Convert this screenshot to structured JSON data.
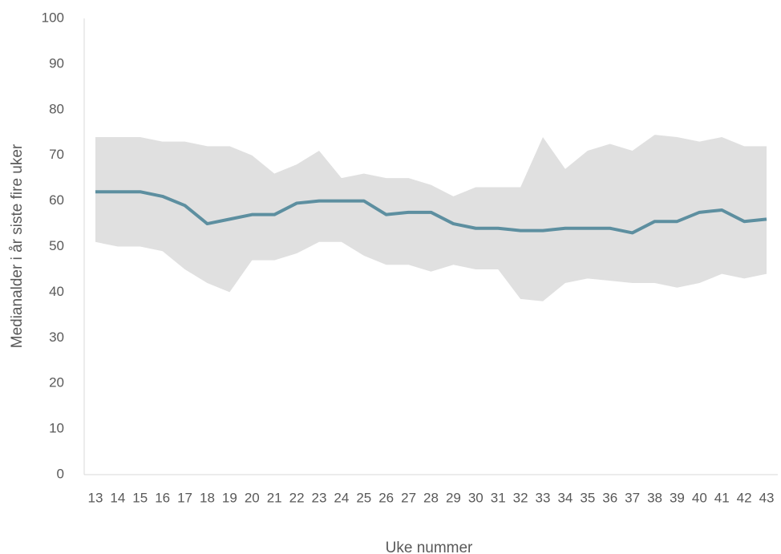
{
  "chart_data": {
    "type": "band-line",
    "y_label": "Medianalder i år siste fire uker",
    "x_label": "Uke nummer",
    "categories": [
      13,
      14,
      15,
      16,
      17,
      18,
      19,
      20,
      21,
      22,
      23,
      24,
      25,
      26,
      27,
      28,
      29,
      30,
      31,
      32,
      33,
      34,
      35,
      36,
      37,
      38,
      39,
      40,
      41,
      42,
      43
    ],
    "band": {
      "color": "#e0e0e0",
      "upper": [
        74,
        74,
        74,
        73,
        73,
        72,
        72,
        70,
        66,
        68,
        71,
        65,
        66,
        65,
        65,
        63.5,
        61,
        63,
        63,
        63,
        74,
        67,
        71,
        72.5,
        71,
        74.5,
        74,
        73,
        74,
        72,
        72
      ],
      "lower": [
        51,
        50,
        50,
        49,
        45,
        42,
        40,
        47,
        47,
        48.5,
        51,
        51,
        48,
        46,
        46,
        44.5,
        46,
        45,
        45,
        38.5,
        38,
        42,
        43,
        42.5,
        42,
        42,
        41,
        42,
        44,
        43,
        44
      ]
    },
    "series": [
      {
        "color": "#5d8fa0",
        "values": [
          62,
          62,
          62,
          61,
          59,
          55,
          56,
          57,
          57,
          59.5,
          60,
          60,
          60,
          57,
          57.5,
          57.5,
          55,
          54,
          54,
          53.5,
          53.5,
          54,
          54,
          54,
          53,
          55.5,
          55.5,
          57.5,
          58,
          55.5,
          56
        ]
      }
    ],
    "ylim": [
      0,
      100
    ],
    "yticks": [
      0,
      10,
      20,
      30,
      40,
      50,
      60,
      70,
      80,
      90,
      100
    ],
    "grid": false
  }
}
